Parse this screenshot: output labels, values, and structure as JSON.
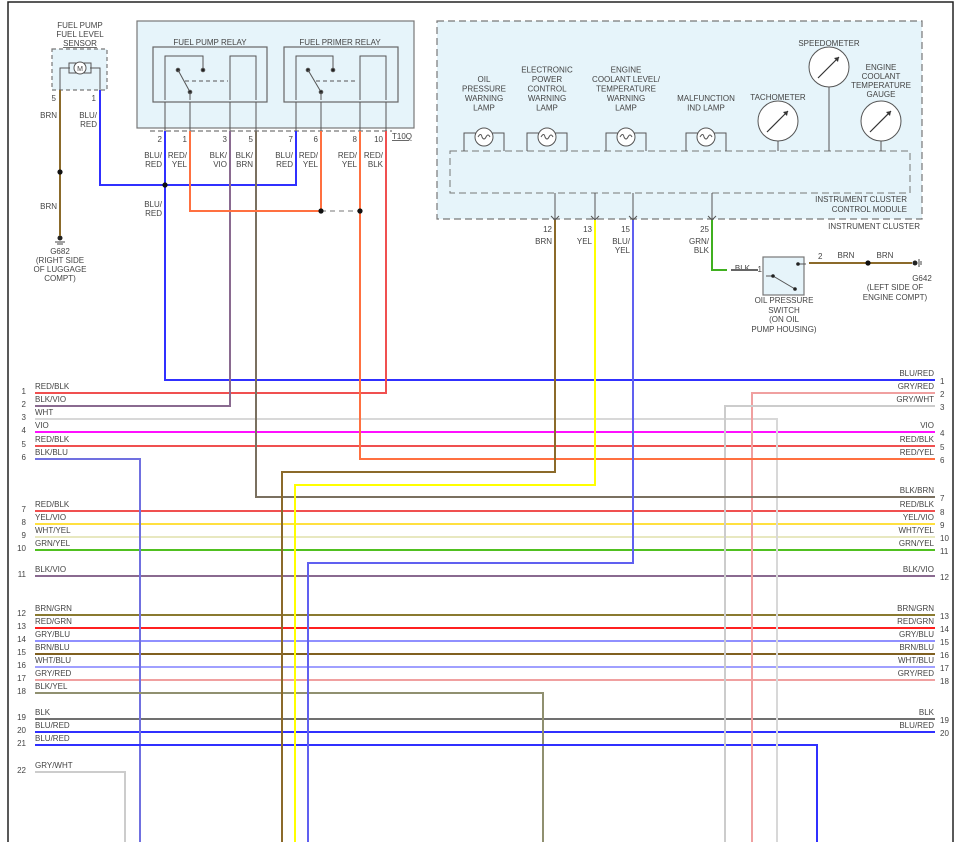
{
  "fuel_sensor": {
    "title": [
      "FUEL PUMP",
      "FUEL LEVEL",
      "SENSOR"
    ],
    "motor": "M",
    "pins": [
      "5",
      "1"
    ],
    "wire_brn": "BRN",
    "wire_blured": [
      "BLU/",
      "RED"
    ],
    "wire_brn_lower": "BRN",
    "ground": [
      "G682",
      "(RIGHT SIDE",
      "OF LUGGAGE",
      "COMPT)"
    ]
  },
  "relays": {
    "fuel_pump_relay": "FUEL PUMP RELAY",
    "fuel_primer_relay": "FUEL PRIMER RELAY",
    "connector": "T10Q",
    "pins": [
      {
        "num": "2",
        "wire": [
          "BLU/",
          "RED"
        ]
      },
      {
        "num": "1",
        "wire": [
          "RED/",
          "YEL"
        ]
      },
      {
        "num": "3",
        "wire": [
          "BLK/",
          "VIO"
        ]
      },
      {
        "num": "5",
        "wire": [
          "BLK/",
          "BRN"
        ]
      },
      {
        "num": "7",
        "wire": [
          "BLU/",
          "RED"
        ]
      },
      {
        "num": "6",
        "wire": [
          "RED/",
          "YEL"
        ]
      },
      {
        "num": "8",
        "wire": [
          "RED/",
          "YEL"
        ]
      },
      {
        "num": "10",
        "wire": [
          "RED/",
          "BLK"
        ]
      }
    ],
    "splice_label": [
      "BLU/",
      "RED"
    ]
  },
  "cluster": {
    "title": "INSTRUMENT CLUSTER",
    "module": [
      "INSTRUMENT CLUSTER",
      "CONTROL MODULE"
    ],
    "lamps": [
      {
        "label": [
          "OIL",
          "PRESSURE",
          "WARNING",
          "LAMP"
        ]
      },
      {
        "label": [
          "ELECTRONIC",
          "POWER",
          "CONTROL",
          "WARNING",
          "LAMP"
        ]
      },
      {
        "label": [
          "ENGINE",
          "COOLANT LEVEL/",
          "TEMPERATURE",
          "WARNING",
          "LAMP"
        ]
      },
      {
        "label": [
          "MALFUNCTION",
          "IND LAMP"
        ]
      }
    ],
    "gauges": [
      {
        "label": [
          "TACHOMETER"
        ]
      },
      {
        "label": [
          "SPEEDOMETER"
        ]
      },
      {
        "label": [
          "ENGINE",
          "COOLANT",
          "TEMPERATURE",
          "GAUGE"
        ]
      }
    ],
    "pins": [
      {
        "num": "12",
        "wire": [
          "BRN"
        ]
      },
      {
        "num": "13",
        "wire": [
          "YEL"
        ]
      },
      {
        "num": "15",
        "wire": [
          "BLU/",
          "YEL"
        ]
      },
      {
        "num": "25",
        "wire": [
          "GRN/",
          "BLK"
        ]
      }
    ]
  },
  "oil_switch": {
    "label": [
      "OIL PRESSURE",
      "SWITCH",
      "(ON OIL",
      "PUMP HOUSING)"
    ],
    "pin1": "1",
    "pin2": "2",
    "wire_in": "BLK",
    "wire_out": "BRN",
    "wire_out2": "BRN",
    "ground": [
      "G642",
      "(LEFT SIDE OF",
      "ENGINE COMPT)"
    ]
  },
  "bus": {
    "left": [
      {
        "num": "1",
        "label": "RED/BLK"
      },
      {
        "num": "2",
        "label": "BLK/VIO"
      },
      {
        "num": "3",
        "label": "WHT"
      },
      {
        "num": "4",
        "label": "VIO"
      },
      {
        "num": "5",
        "label": "RED/BLK"
      },
      {
        "num": "6",
        "label": "BLK/BLU"
      },
      {
        "num": "7",
        "label": "RED/BLK"
      },
      {
        "num": "8",
        "label": "YEL/VIO"
      },
      {
        "num": "9",
        "label": "WHT/YEL"
      },
      {
        "num": "10",
        "label": "GRN/YEL"
      },
      {
        "num": "11",
        "label": "BLK/VIO"
      },
      {
        "num": "12",
        "label": "BRN/GRN"
      },
      {
        "num": "13",
        "label": "RED/GRN"
      },
      {
        "num": "14",
        "label": "GRY/BLU"
      },
      {
        "num": "15",
        "label": "BRN/BLU"
      },
      {
        "num": "16",
        "label": "WHT/BLU"
      },
      {
        "num": "17",
        "label": "GRY/RED"
      },
      {
        "num": "18",
        "label": "BLK/YEL"
      },
      {
        "num": "19",
        "label": "BLK"
      },
      {
        "num": "20",
        "label": "BLU/RED"
      },
      {
        "num": "21",
        "label": "BLU/RED"
      },
      {
        "num": "22",
        "label": "GRY/WHT"
      }
    ],
    "right": [
      {
        "num": "1",
        "label": "BLU/RED"
      },
      {
        "num": "2",
        "label": "GRY/RED"
      },
      {
        "num": "3",
        "label": "GRY/WHT"
      },
      {
        "num": "4",
        "label": "VIO"
      },
      {
        "num": "5",
        "label": "RED/BLK"
      },
      {
        "num": "6",
        "label": "RED/YEL"
      },
      {
        "num": "7",
        "label": "BLK/BRN"
      },
      {
        "num": "8",
        "label": "RED/BLK"
      },
      {
        "num": "9",
        "label": "YEL/VIO"
      },
      {
        "num": "10",
        "label": "WHT/YEL"
      },
      {
        "num": "11",
        "label": "GRN/YEL"
      },
      {
        "num": "12",
        "label": "BLK/VIO"
      },
      {
        "num": "13",
        "label": "BRN/GRN"
      },
      {
        "num": "14",
        "label": "RED/GRN"
      },
      {
        "num": "15",
        "label": "GRY/BLU"
      },
      {
        "num": "16",
        "label": "BRN/BLU"
      },
      {
        "num": "17",
        "label": "WHT/BLU"
      },
      {
        "num": "18",
        "label": "GRY/RED"
      },
      {
        "num": "19",
        "label": "BLK"
      },
      {
        "num": "20",
        "label": "BLU/RED"
      }
    ]
  },
  "wire_colors": {
    "RED/BLK": "#f05050",
    "BLK/VIO": "#8a6a90",
    "WHT": "#d8d8d8",
    "VIO": "#ff10ff",
    "BLK/BLU": "#7070e0",
    "YEL/VIO": "#ffe040",
    "WHT/YEL": "#e8e8c0",
    "GRN/YEL": "#50c020",
    "BRN/GRN": "#8a7a30",
    "RED/GRN": "#ff2020",
    "GRY/BLU": "#9090ff",
    "BRN/BLU": "#806020",
    "WHT/BLU": "#a0a0ff",
    "GRY/RED": "#f0a0a0",
    "BLK/YEL": "#909070",
    "BLK": "#707070",
    "BLU/RED": "#3030ff",
    "GRY/WHT": "#cccccc",
    "RED/YEL": "#ff7040",
    "BLK/BRN": "#7a7060",
    "BRN": "#8b6a2a",
    "YEL": "#ffff00",
    "BLU/YEL": "#6060f0",
    "GRN/BLK": "#40b020"
  }
}
